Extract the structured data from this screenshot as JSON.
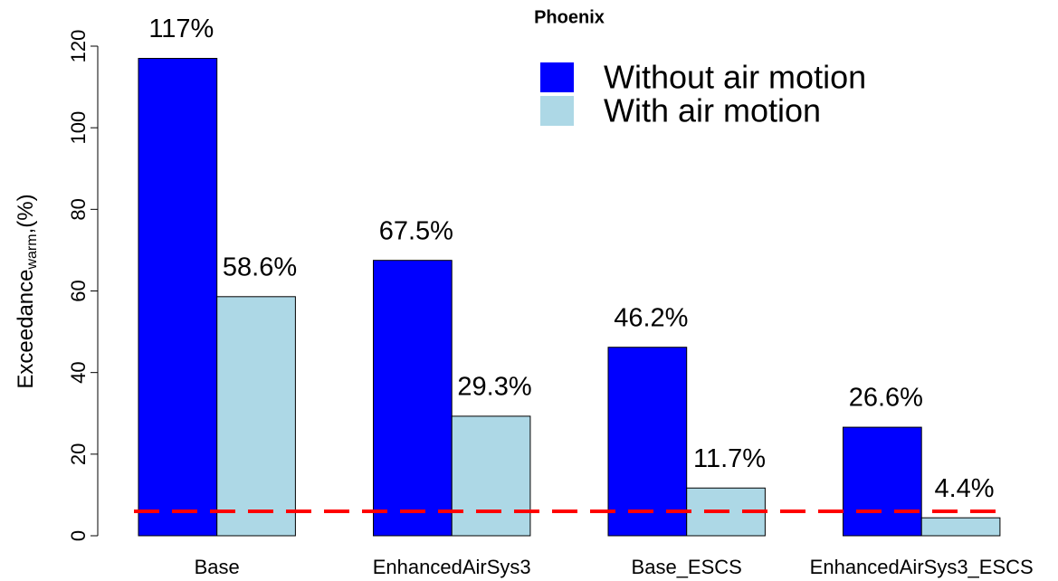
{
  "chart_data": {
    "type": "bar",
    "title": "Phoenix",
    "ylabel": "Exceedance",
    "ylabel_subscript": "warm",
    "ylabel_suffix": ",(%)",
    "categories": [
      "Base",
      "EnhancedAirSys3",
      "Base_ESCS",
      "EnhancedAirSys3_ESCS"
    ],
    "series": [
      {
        "name": "Without air motion",
        "color": "#0000ff",
        "values": [
          117,
          67.5,
          46.2,
          26.6
        ],
        "value_labels": [
          "117%",
          "67.5%",
          "46.2%",
          "26.6%"
        ]
      },
      {
        "name": "With air motion",
        "color": "#add8e6",
        "values": [
          58.6,
          29.3,
          11.7,
          4.4
        ],
        "value_labels": [
          "58.6%",
          "29.3%",
          "11.7%",
          "4.4%"
        ]
      }
    ],
    "reference_line": {
      "value": 6,
      "color": "#ff0000"
    },
    "ylim": [
      0,
      120
    ],
    "yticks": [
      0,
      20,
      40,
      60,
      80,
      100,
      120
    ],
    "legend": "top-right"
  }
}
